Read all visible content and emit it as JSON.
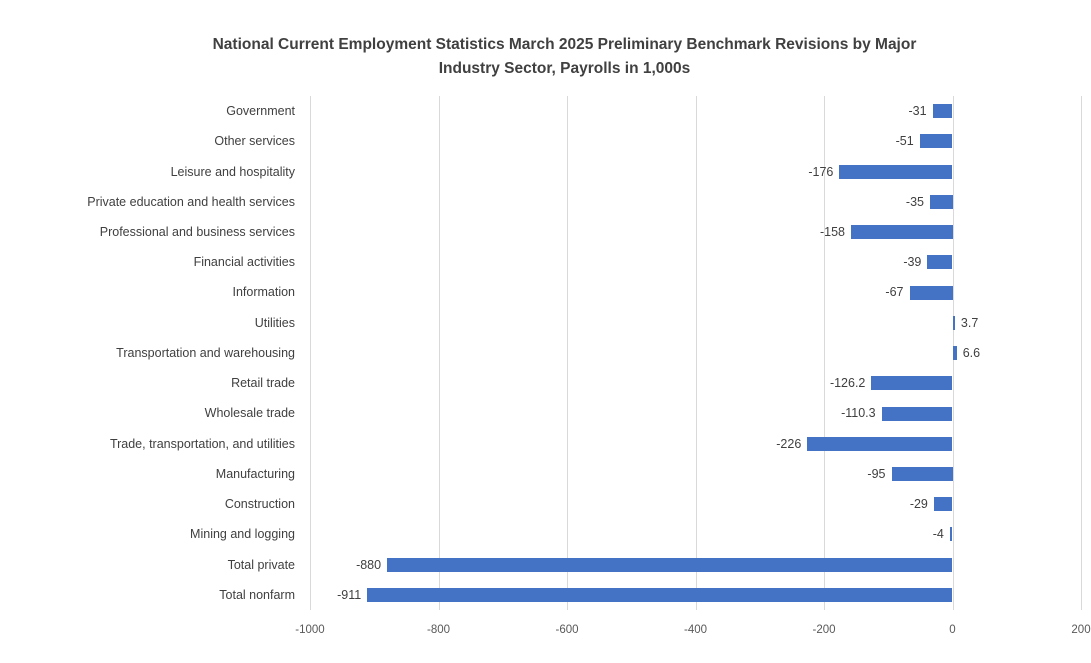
{
  "header": {
    "title_line1": "National Current Employment Statistics March 2025 Preliminary Benchmark Revisions by Major",
    "title_line2": "Industry Sector, Payrolls in 1,000s"
  },
  "chart_data": {
    "type": "bar",
    "orientation": "horizontal",
    "title": "National Current Employment Statistics March 2025 Preliminary Benchmark Revisions by Major Industry Sector, Payrolls in 1,000s",
    "categories": [
      "Government",
      "Other services",
      "Leisure and hospitality",
      "Private education and health services",
      "Professional and business services",
      "Financial activities",
      "Information",
      "Utilities",
      "Transportation and warehousing",
      "Retail trade",
      "Wholesale trade",
      "Trade, transportation, and utilities",
      "Manufacturing",
      "Construction",
      "Mining and logging",
      "Total private",
      "Total nonfarm"
    ],
    "values": [
      -31,
      -51,
      -176,
      -35,
      -158,
      -39,
      -67,
      3.7,
      6.6,
      -126.2,
      -110.3,
      -226,
      -95,
      -29,
      -4,
      -880,
      -911
    ],
    "labels": [
      "-31",
      "-51",
      "-176",
      "-35",
      "-158",
      "-39",
      "-67",
      "3.7",
      "6.6",
      "-126.2",
      "-110.3",
      "-226",
      "-95",
      "-29",
      "-4",
      "-880",
      "-911"
    ],
    "xlabel": "",
    "ylabel": "",
    "xlim": [
      -1000,
      200
    ],
    "xticks": [
      -1000,
      -800,
      -600,
      -400,
      -200,
      0,
      200
    ],
    "xtick_labels": [
      "-1000",
      "-800",
      "-600",
      "-400",
      "-200",
      "0",
      "200"
    ],
    "grid": "vertical",
    "legend": "none",
    "bar_color": "#4472c4",
    "gridline_color": "#d9d9d9",
    "title_color": "#404040",
    "label_color": "#404040",
    "tick_label_color": "#595959"
  }
}
